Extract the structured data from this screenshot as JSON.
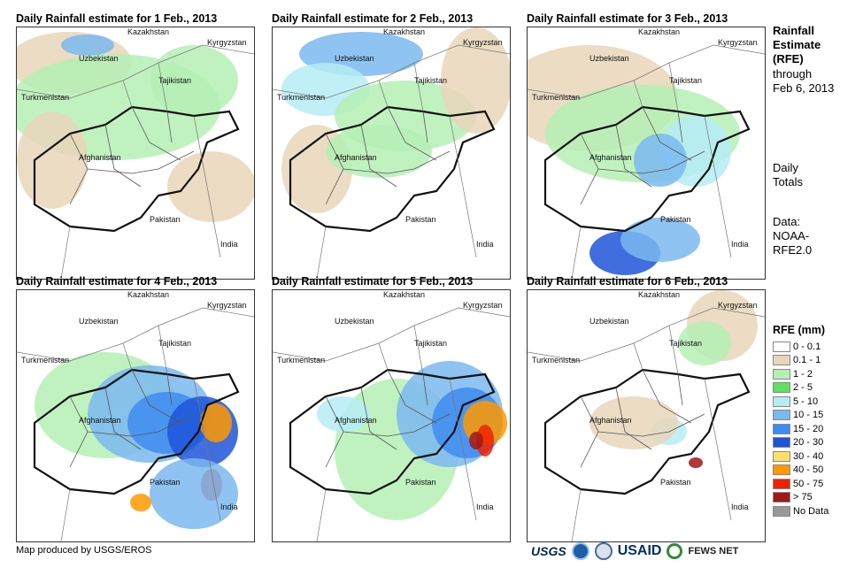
{
  "panels": [
    {
      "title": "Daily Rainfall estimate for 1 Feb., 2013"
    },
    {
      "title": "Daily Rainfall estimate for 2 Feb., 2013"
    },
    {
      "title": "Daily Rainfall estimate for 3 Feb., 2013"
    },
    {
      "title": "Daily Rainfall estimate for 4 Feb., 2013"
    },
    {
      "title": "Daily Rainfall estimate for 5 Feb., 2013"
    },
    {
      "title": "Daily Rainfall estimate for 6 Feb., 2013"
    }
  ],
  "map_labels": {
    "kazakhstan": "Kazakhstan",
    "kyrgyzstan": "Kyrgyzstan",
    "uzbekistan": "Uzbekistan",
    "tajikistan": "Tajikistan",
    "turkmenistan": "Turkmenistan",
    "afghanistan": "Afghanistan",
    "pakistan": "Pakistan",
    "india": "India"
  },
  "sidebar": {
    "title_line1": "Rainfall",
    "title_line2": "Estimate",
    "title_line3": "(RFE)",
    "through": "through",
    "date": "Feb 6, 2013",
    "daily": "Daily",
    "totals": "Totals",
    "data_label": "Data:",
    "data_source1": "NOAA-",
    "data_source2": "RFE2.0"
  },
  "legend": {
    "title": "RFE (mm)",
    "items": [
      {
        "label": "0 - 0.1",
        "color": "#ffffff"
      },
      {
        "label": "0.1 - 1",
        "color": "#e8d6b8"
      },
      {
        "label": "1 - 2",
        "color": "#b5f0b5"
      },
      {
        "label": "2 - 5",
        "color": "#5fe05f"
      },
      {
        "label": "5 - 10",
        "color": "#b5ecf5"
      },
      {
        "label": "10 - 15",
        "color": "#7ab8f0"
      },
      {
        "label": "15 - 20",
        "color": "#3e8cf0"
      },
      {
        "label": "20 - 30",
        "color": "#1e55d8"
      },
      {
        "label": "30 - 40",
        "color": "#ffe066"
      },
      {
        "label": "40 - 50",
        "color": "#ff9900"
      },
      {
        "label": "50 - 75",
        "color": "#ee2200"
      },
      {
        "label": "> 75",
        "color": "#a01818"
      },
      {
        "label": "No Data",
        "color": "#999999"
      }
    ]
  },
  "footer": {
    "credit": "Map produced by USGS/EROS",
    "usgs": "USGS",
    "usaid": "USAID",
    "fews": "FEWS NET"
  }
}
